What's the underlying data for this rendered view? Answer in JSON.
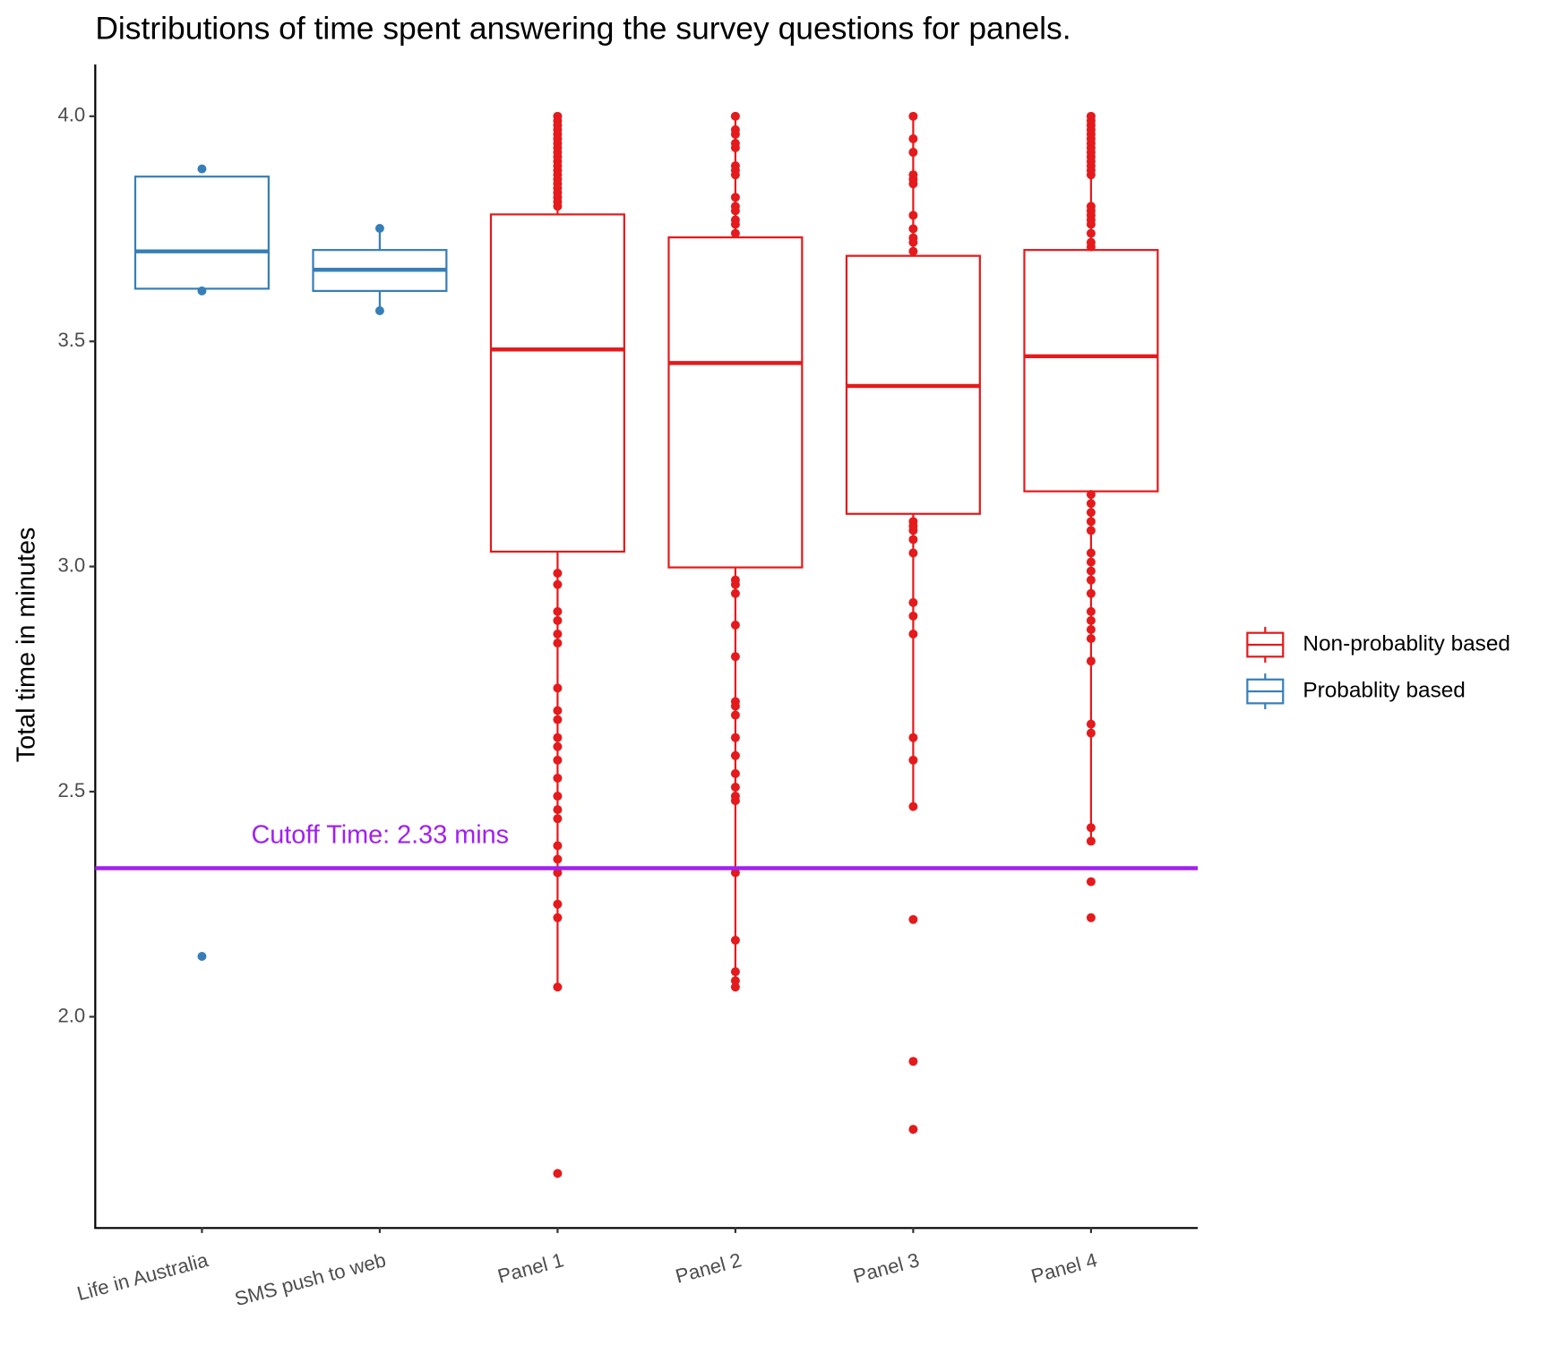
{
  "chart_data": {
    "type": "box",
    "title": "Distributions of time spent answering the survey questions for panels.",
    "y_label": "Total time in minutes",
    "categories": [
      "Life in Australia",
      "SMS push to web",
      "Panel 1",
      "Panel 2",
      "Panel 3",
      "Panel 4"
    ],
    "series": [
      {
        "name": "Non-probablity based",
        "color": "#e41a1c",
        "values": [
          null,
          null,
          {
            "q1": 3.033,
            "median": 3.482,
            "q3": 3.782,
            "whisker_low": 2.066,
            "whisker_high": 4.0,
            "outliers": [
              4.0,
              3.99,
              3.98,
              3.97,
              3.96,
              3.95,
              3.94,
              3.93,
              3.92,
              3.91,
              3.9,
              3.89,
              3.88,
              3.87,
              3.86,
              3.85,
              3.84,
              3.83,
              3.82,
              3.81,
              3.8,
              2.985,
              2.96,
              2.9,
              2.88,
              2.85,
              2.83,
              2.73,
              2.68,
              2.66,
              2.62,
              2.6,
              2.57,
              2.53,
              2.49,
              2.46,
              2.44,
              2.38,
              2.35,
              2.32,
              2.25,
              2.22,
              2.066,
              1.652
            ]
          },
          {
            "q1": 2.998,
            "median": 3.452,
            "q3": 3.731,
            "whisker_low": 2.066,
            "whisker_high": 4.0,
            "outliers": [
              4.0,
              3.97,
              3.96,
              3.94,
              3.93,
              3.89,
              3.88,
              3.87,
              3.82,
              3.8,
              3.79,
              3.77,
              3.76,
              3.74,
              2.97,
              2.96,
              2.94,
              2.87,
              2.8,
              2.7,
              2.69,
              2.67,
              2.62,
              2.58,
              2.54,
              2.51,
              2.49,
              2.48,
              2.32,
              2.17,
              2.1,
              2.08,
              2.066
            ]
          },
          {
            "q1": 3.117,
            "median": 3.401,
            "q3": 3.69,
            "whisker_low": 2.467,
            "whisker_high": 4.0,
            "outliers": [
              4.0,
              3.95,
              3.92,
              3.87,
              3.86,
              3.85,
              3.78,
              3.75,
              3.73,
              3.72,
              3.7,
              3.1,
              3.09,
              3.08,
              3.06,
              3.03,
              2.92,
              2.89,
              2.85,
              2.62,
              2.57,
              2.467,
              2.216,
              1.901,
              1.75
            ]
          },
          {
            "q1": 3.167,
            "median": 3.467,
            "q3": 3.703,
            "whisker_low": 2.385,
            "whisker_high": 4.0,
            "outliers": [
              4.0,
              3.99,
              3.98,
              3.97,
              3.96,
              3.95,
              3.94,
              3.93,
              3.92,
              3.91,
              3.9,
              3.89,
              3.88,
              3.87,
              3.8,
              3.79,
              3.78,
              3.77,
              3.76,
              3.74,
              3.72,
              3.71,
              3.16,
              3.14,
              3.12,
              3.1,
              3.08,
              3.03,
              3.01,
              2.99,
              2.97,
              2.94,
              2.9,
              2.88,
              2.86,
              2.84,
              2.79,
              2.65,
              2.63,
              2.42,
              2.39,
              2.3,
              2.22
            ]
          }
        ]
      },
      {
        "name": "Probablity based",
        "color": "#377eb8",
        "values": [
          {
            "q1": 3.617,
            "median": 3.7,
            "q3": 3.866,
            "whisker_low": 3.617,
            "whisker_high": 3.866,
            "outliers": [
              3.883,
              3.612,
              2.134
            ]
          },
          {
            "q1": 3.612,
            "median": 3.659,
            "q3": 3.703,
            "whisker_low": 3.568,
            "whisker_high": 3.751,
            "outliers": [
              3.751,
              3.568
            ]
          },
          null,
          null,
          null,
          null
        ]
      }
    ],
    "reference_line": {
      "value": 2.33,
      "label": "Cutoff Time: 2.33 mins",
      "color": "#a020f0"
    },
    "ylim": [
      1.533,
      4.115
    ],
    "yticks": [
      {
        "value": 2.0,
        "label": "2.0"
      },
      {
        "value": 2.5,
        "label": "2.5"
      },
      {
        "value": 3.0,
        "label": "3.0"
      },
      {
        "value": 3.5,
        "label": "3.5"
      },
      {
        "value": 4.0,
        "label": "4.0"
      }
    ],
    "legend": "right"
  }
}
